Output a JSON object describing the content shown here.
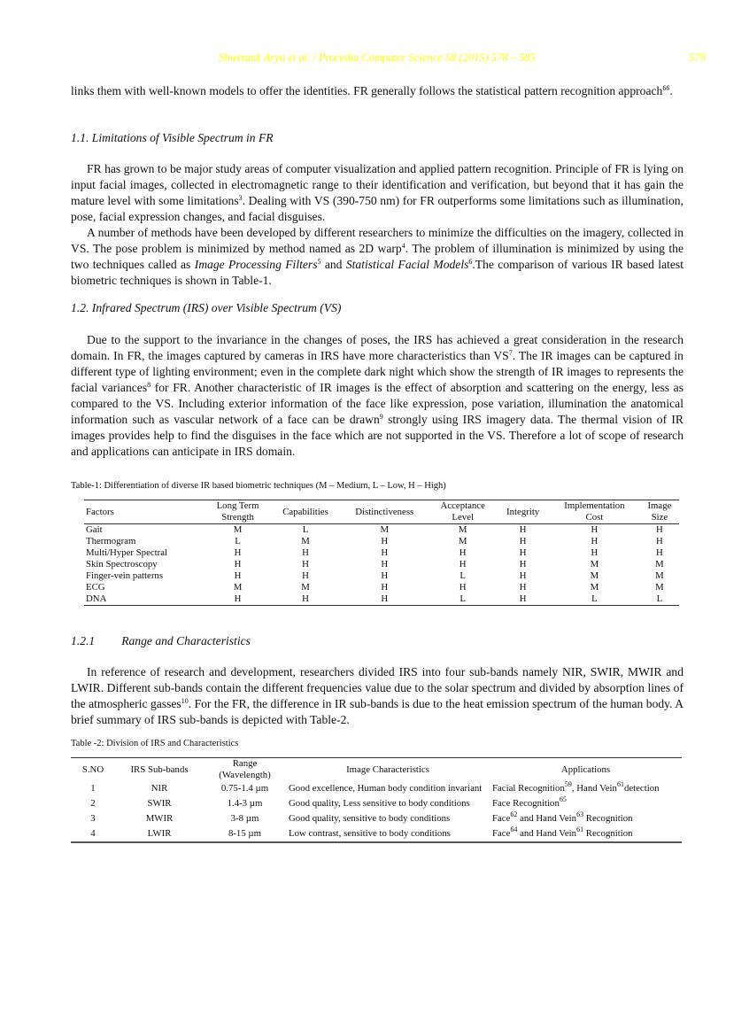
{
  "header": {
    "running_title": "Shwetank Arya et al. / Procedia Computer Science 58 (2015) 578 – 585",
    "page_number": "579",
    "color": "#ffff00"
  },
  "paragraphs": {
    "p0": [
      {
        "t": "links them with well-known models to offer the identities. FR generally follows the statistical pattern recognition approach"
      },
      {
        "t": "66",
        "sup": true
      },
      {
        "t": "."
      }
    ],
    "h1": "1.1. Limitations of Visible Spectrum in FR",
    "p1": [
      {
        "t": "FR has grown to be major study areas of computer visualization and applied pattern recognition. Principle of FR is lying on input facial images, collected in electromagnetic range to their identification and verification, but beyond that it has gain the mature level with some limitations"
      },
      {
        "t": "3",
        "sup": true
      },
      {
        "t": ". Dealing with VS (390-750 nm) for FR outperforms some limitations such as illumination, pose, facial expression changes, and facial disguises."
      }
    ],
    "p2": [
      {
        "t": "A number of methods have been developed by different researchers to minimize the difficulties on the imagery, collected in VS. The pose problem is minimized by method named as 2D warp"
      },
      {
        "t": "4",
        "sup": true
      },
      {
        "t": ". The problem of illumination is minimized by using the two techniques called as "
      },
      {
        "t": "Image Processing Filters",
        "i": true
      },
      {
        "t": "5",
        "sup": true
      },
      {
        "t": " and "
      },
      {
        "t": "Statistical Facial Models",
        "i": true
      },
      {
        "t": "6",
        "sup": true
      },
      {
        "t": ".The comparison of various IR based latest biometric techniques is shown in Table-1."
      }
    ],
    "h2": "1.2. Infrared Spectrum (IRS) over Visible Spectrum (VS)",
    "p3": [
      {
        "t": "Due to the support to the invariance in the changes of poses, the IRS has achieved a great consideration in the research domain. In FR, the images captured by cameras in IRS have more characteristics than VS"
      },
      {
        "t": "7",
        "sup": true
      },
      {
        "t": ". The IR images can be captured in different type of lighting environment; even in the complete dark night which show the strength of IR images to represents the facial variances"
      },
      {
        "t": "8",
        "sup": true
      },
      {
        "t": " for FR. Another characteristic of IR images is the effect of absorption and scattering on the energy, less as compared to the VS. Including exterior information of the face like expression, pose variation, illumination the anatomical information such as vascular network of a face can be drawn"
      },
      {
        "t": "9",
        "sup": true
      },
      {
        "t": " strongly using IRS imagery data. The thermal vision of IR images provides help to find the disguises in the face which are not supported in the VS. Therefore a lot of scope of research and applications can anticipate in IRS domain."
      }
    ],
    "h3_num": "1.2.1",
    "h3_title": "Range and Characteristics",
    "p4": [
      {
        "t": "In reference of research and development, researchers divided IRS into four sub-bands namely NIR, SWIR, MWIR and LWIR. Different sub-bands contain the different frequencies value due to the solar spectrum and divided by absorption lines of the atmospheric gasses"
      },
      {
        "t": "10",
        "sup": true
      },
      {
        "t": ". For the FR, the difference in IR sub-bands is due to the heat emission spectrum of the human body. A brief summary of IRS sub-bands is depicted with Table-2."
      }
    ]
  },
  "table1": {
    "caption": "Table-1: Differentiation of diverse IR based biometric techniques (M – Medium, L – Low, H – High)",
    "headers": [
      [
        "Factors"
      ],
      [
        "Long Term",
        "Strength"
      ],
      [
        "Capabilities"
      ],
      [
        "Distinctiveness"
      ],
      [
        "Acceptance",
        "Level"
      ],
      [
        "Integrity"
      ],
      [
        "Implementation",
        "Cost"
      ],
      [
        "Image",
        "Size"
      ]
    ],
    "rows": [
      [
        "Gait",
        "M",
        "L",
        "M",
        "M",
        "H",
        "H",
        "H"
      ],
      [
        "Thermogram",
        "L",
        "M",
        "H",
        "M",
        "H",
        "H",
        "H"
      ],
      [
        "Multi/Hyper Spectral",
        "H",
        "H",
        "H",
        "H",
        "H",
        "H",
        "H"
      ],
      [
        "Skin Spectroscopy",
        "H",
        "H",
        "H",
        "H",
        "H",
        "M",
        "M"
      ],
      [
        "Finger-vein patterns",
        "H",
        "H",
        "H",
        "L",
        "H",
        "M",
        "M"
      ],
      [
        "ECG",
        "M",
        "M",
        "H",
        "H",
        "H",
        "M",
        "M"
      ],
      [
        "DNA",
        "H",
        "H",
        "H",
        "L",
        "H",
        "L",
        "L"
      ]
    ]
  },
  "table2": {
    "caption": "Table -2: Division of IRS and Characteristics",
    "headers": [
      [
        "S.NO"
      ],
      [
        "IRS Sub-bands"
      ],
      [
        "Range",
        "(Wavelength)"
      ],
      [
        "Image Characteristics"
      ],
      [
        "Applications"
      ]
    ],
    "rows": [
      [
        "1",
        "NIR",
        "0.75-1.4 µm",
        [
          {
            "t": "Good excellence, Human body condition invariant"
          }
        ],
        [
          {
            "t": "Facial Recognition"
          },
          {
            "t": "59",
            "sup": true
          },
          {
            "t": ", Hand Vein"
          },
          {
            "t": "61",
            "sup": true
          },
          {
            "t": "detection"
          }
        ]
      ],
      [
        "2",
        "SWIR",
        "1.4-3 µm",
        [
          {
            "t": "Good quality, Less sensitive to body conditions"
          }
        ],
        [
          {
            "t": "Face Recognition"
          },
          {
            "t": "65",
            "sup": true
          }
        ]
      ],
      [
        "3",
        "MWIR",
        "3-8 µm",
        [
          {
            "t": "Good quality, sensitive to body conditions"
          }
        ],
        [
          {
            "t": "Face"
          },
          {
            "t": "62",
            "sup": true
          },
          {
            "t": " and Hand Vein"
          },
          {
            "t": "63",
            "sup": true
          },
          {
            "t": " Recognition"
          }
        ]
      ],
      [
        "4",
        "LWIR",
        "8-15 µm",
        [
          {
            "t": "Low contrast, sensitive to body conditions"
          }
        ],
        [
          {
            "t": "Face"
          },
          {
            "t": "64",
            "sup": true
          },
          {
            "t": " and Hand Vein"
          },
          {
            "t": "61",
            "sup": true
          },
          {
            "t": " Recognition"
          }
        ]
      ]
    ]
  }
}
